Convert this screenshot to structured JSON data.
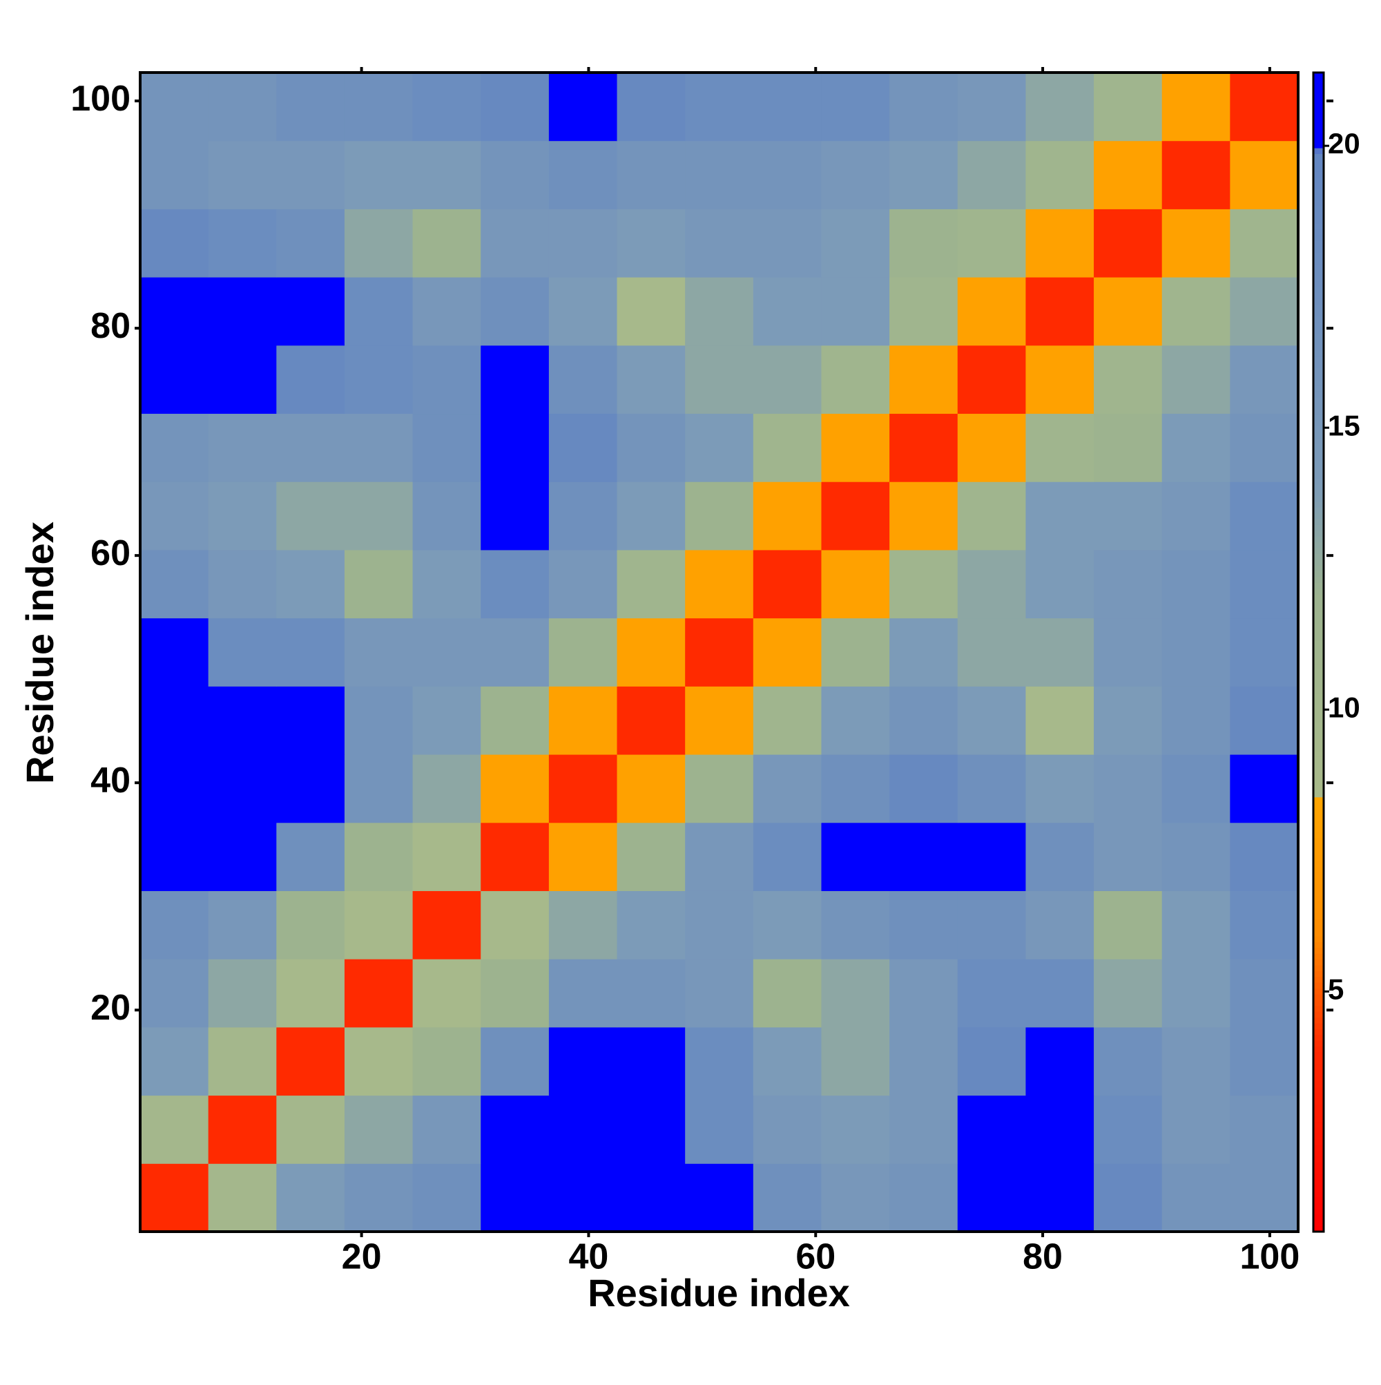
{
  "chart_data": {
    "type": "heatmap",
    "x_label": "Residue index",
    "y_label": "Residue index",
    "x_bins": [
      0.5,
      6.5,
      12.5,
      18.5,
      24.5,
      30.5,
      36.5,
      42.5,
      48.5,
      54.5,
      60.5,
      66.5,
      72.5,
      78.5,
      84.5,
      90.5,
      96.5,
      102.5
    ],
    "y_bins": [
      0.5,
      6.5,
      12.5,
      18.5,
      24.5,
      30.5,
      36.5,
      42.5,
      48.5,
      54.5,
      60.5,
      66.5,
      72.5,
      78.5,
      84.5,
      90.5,
      96.5,
      102.5
    ],
    "values": [
      [
        4,
        10,
        14,
        16,
        17,
        21,
        21,
        21,
        20,
        17,
        15,
        16,
        20,
        20,
        19,
        16,
        16
      ],
      [
        10,
        4,
        10,
        13,
        15,
        20,
        21,
        21,
        18,
        15,
        14,
        15,
        20,
        21,
        18,
        15,
        16
      ],
      [
        14,
        10,
        4,
        9,
        12,
        17,
        20,
        21,
        18,
        14,
        13,
        15,
        19,
        21,
        17,
        15,
        17
      ],
      [
        16,
        13,
        9,
        4,
        9,
        12,
        16,
        16,
        15,
        12,
        13,
        15,
        18,
        18,
        13,
        14,
        17
      ],
      [
        17,
        15,
        12,
        9,
        4,
        9,
        13,
        14,
        15,
        14,
        16,
        17,
        17,
        15,
        12,
        14,
        18
      ],
      [
        21,
        20,
        17,
        12,
        9,
        4,
        8,
        12,
        15,
        18,
        20,
        21,
        20,
        17,
        15,
        16,
        19
      ],
      [
        21,
        21,
        20,
        16,
        13,
        8,
        4,
        8,
        12,
        15,
        17,
        19,
        17,
        14,
        15,
        17,
        20
      ],
      [
        21,
        21,
        21,
        16,
        14,
        12,
        8,
        4,
        8,
        11,
        14,
        16,
        14,
        9,
        14,
        16,
        19
      ],
      [
        20,
        18,
        18,
        15,
        15,
        15,
        12,
        8,
        4,
        8,
        12,
        14,
        13,
        13,
        15,
        16,
        18
      ],
      [
        17,
        15,
        14,
        12,
        14,
        18,
        15,
        11,
        8,
        4,
        8,
        11,
        13,
        14,
        15,
        16,
        18
      ],
      [
        15,
        14,
        13,
        13,
        16,
        20,
        17,
        14,
        12,
        8,
        4,
        8,
        11,
        14,
        14,
        15,
        18
      ],
      [
        16,
        15,
        15,
        15,
        17,
        21,
        19,
        16,
        14,
        11,
        8,
        4,
        8,
        11,
        12,
        14,
        16
      ],
      [
        20,
        20,
        19,
        18,
        17,
        20,
        17,
        14,
        13,
        13,
        11,
        8,
        4,
        8,
        11,
        13,
        15
      ],
      [
        20,
        21,
        21,
        18,
        15,
        17,
        14,
        9,
        13,
        14,
        14,
        11,
        8,
        4,
        8,
        11,
        13
      ],
      [
        19,
        18,
        17,
        13,
        12,
        15,
        15,
        14,
        15,
        15,
        14,
        12,
        11,
        8,
        4,
        8,
        11
      ],
      [
        16,
        15,
        15,
        14,
        14,
        16,
        17,
        16,
        16,
        16,
        15,
        14,
        13,
        11,
        8,
        4,
        8
      ],
      [
        16,
        16,
        17,
        17,
        18,
        19,
        20,
        19,
        18,
        18,
        18,
        16,
        15,
        13,
        11,
        8,
        4
      ]
    ],
    "xlim": [
      0.5,
      102.5
    ],
    "xticks": [
      20,
      40,
      60,
      80,
      100
    ],
    "ylim": [
      0.5,
      102.5
    ],
    "yticks": [
      20,
      40,
      60,
      80,
      100
    ],
    "clim": [
      0.74,
      21.3
    ],
    "cticks": [
      5,
      10,
      15,
      20
    ],
    "colorscale": [
      [
        0.74,
        "#ff0000"
      ],
      [
        4,
        "#ff2a00"
      ],
      [
        6,
        "#ff8c00"
      ],
      [
        8.4,
        "#ffa500"
      ],
      [
        8.5,
        "#a9ba8a"
      ],
      [
        12,
        "#9db38f"
      ],
      [
        14,
        "#7c9bb8"
      ],
      [
        19.9,
        "#6386c2"
      ],
      [
        20,
        "#0000ff"
      ],
      [
        21.3,
        "#0000ff"
      ]
    ]
  }
}
